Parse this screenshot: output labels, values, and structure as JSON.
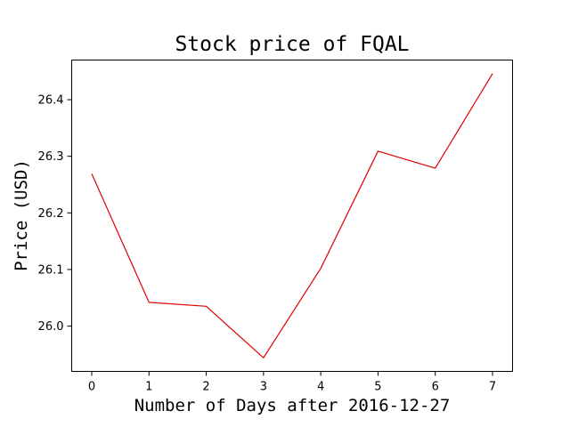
{
  "chart_data": {
    "type": "line",
    "title": "Stock price of FQAL",
    "xlabel": "Number of Days after 2016-12-27",
    "ylabel": "Price (USD)",
    "x": [
      0,
      1,
      2,
      3,
      4,
      5,
      6,
      7
    ],
    "series": [
      {
        "values": [
          26.269,
          26.042,
          26.035,
          25.944,
          26.102,
          26.309,
          26.279,
          26.446
        ],
        "color": "#dd0000"
      }
    ],
    "xticks": [
      "0",
      "1",
      "2",
      "3",
      "4",
      "5",
      "6",
      "7"
    ],
    "yticks": [
      "26.0",
      "26.1",
      "26.2",
      "26.3",
      "26.4"
    ],
    "xlim": [
      -0.35,
      7.35
    ],
    "ylim": [
      25.92,
      26.47
    ],
    "grid": false,
    "legend": "none"
  }
}
